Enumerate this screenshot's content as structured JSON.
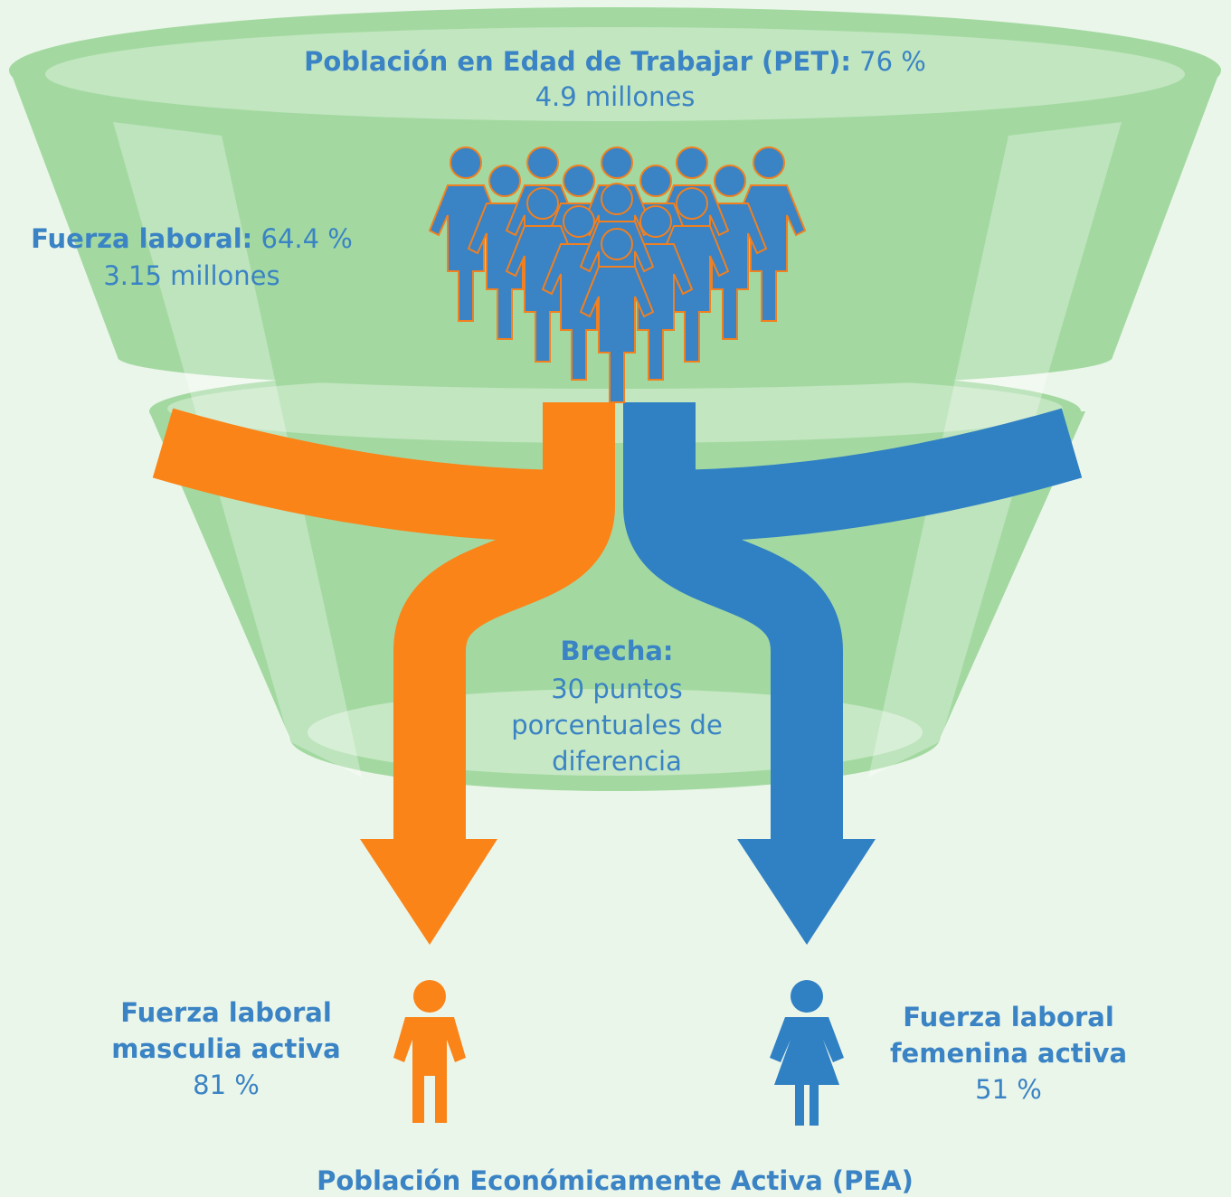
{
  "pet": {
    "label": "Población en Edad de Trabajar (PET):",
    "value": "76 %",
    "sub": "4.9 millones"
  },
  "labor_force": {
    "label": "Fuerza laboral:",
    "value": "64.4 %",
    "sub": "3.15 millones"
  },
  "gap": {
    "label": "Brecha:",
    "lines": [
      "30 puntos",
      "porcentuales de",
      "diferencia"
    ]
  },
  "male": {
    "lines": [
      "Fuerza laboral",
      "masculia activa"
    ],
    "value": "81 %"
  },
  "female": {
    "lines": [
      "Fuerza laboral",
      "femenina activa"
    ],
    "value": "51 %"
  },
  "footer": "Población Económicamente Activa (PEA)"
}
